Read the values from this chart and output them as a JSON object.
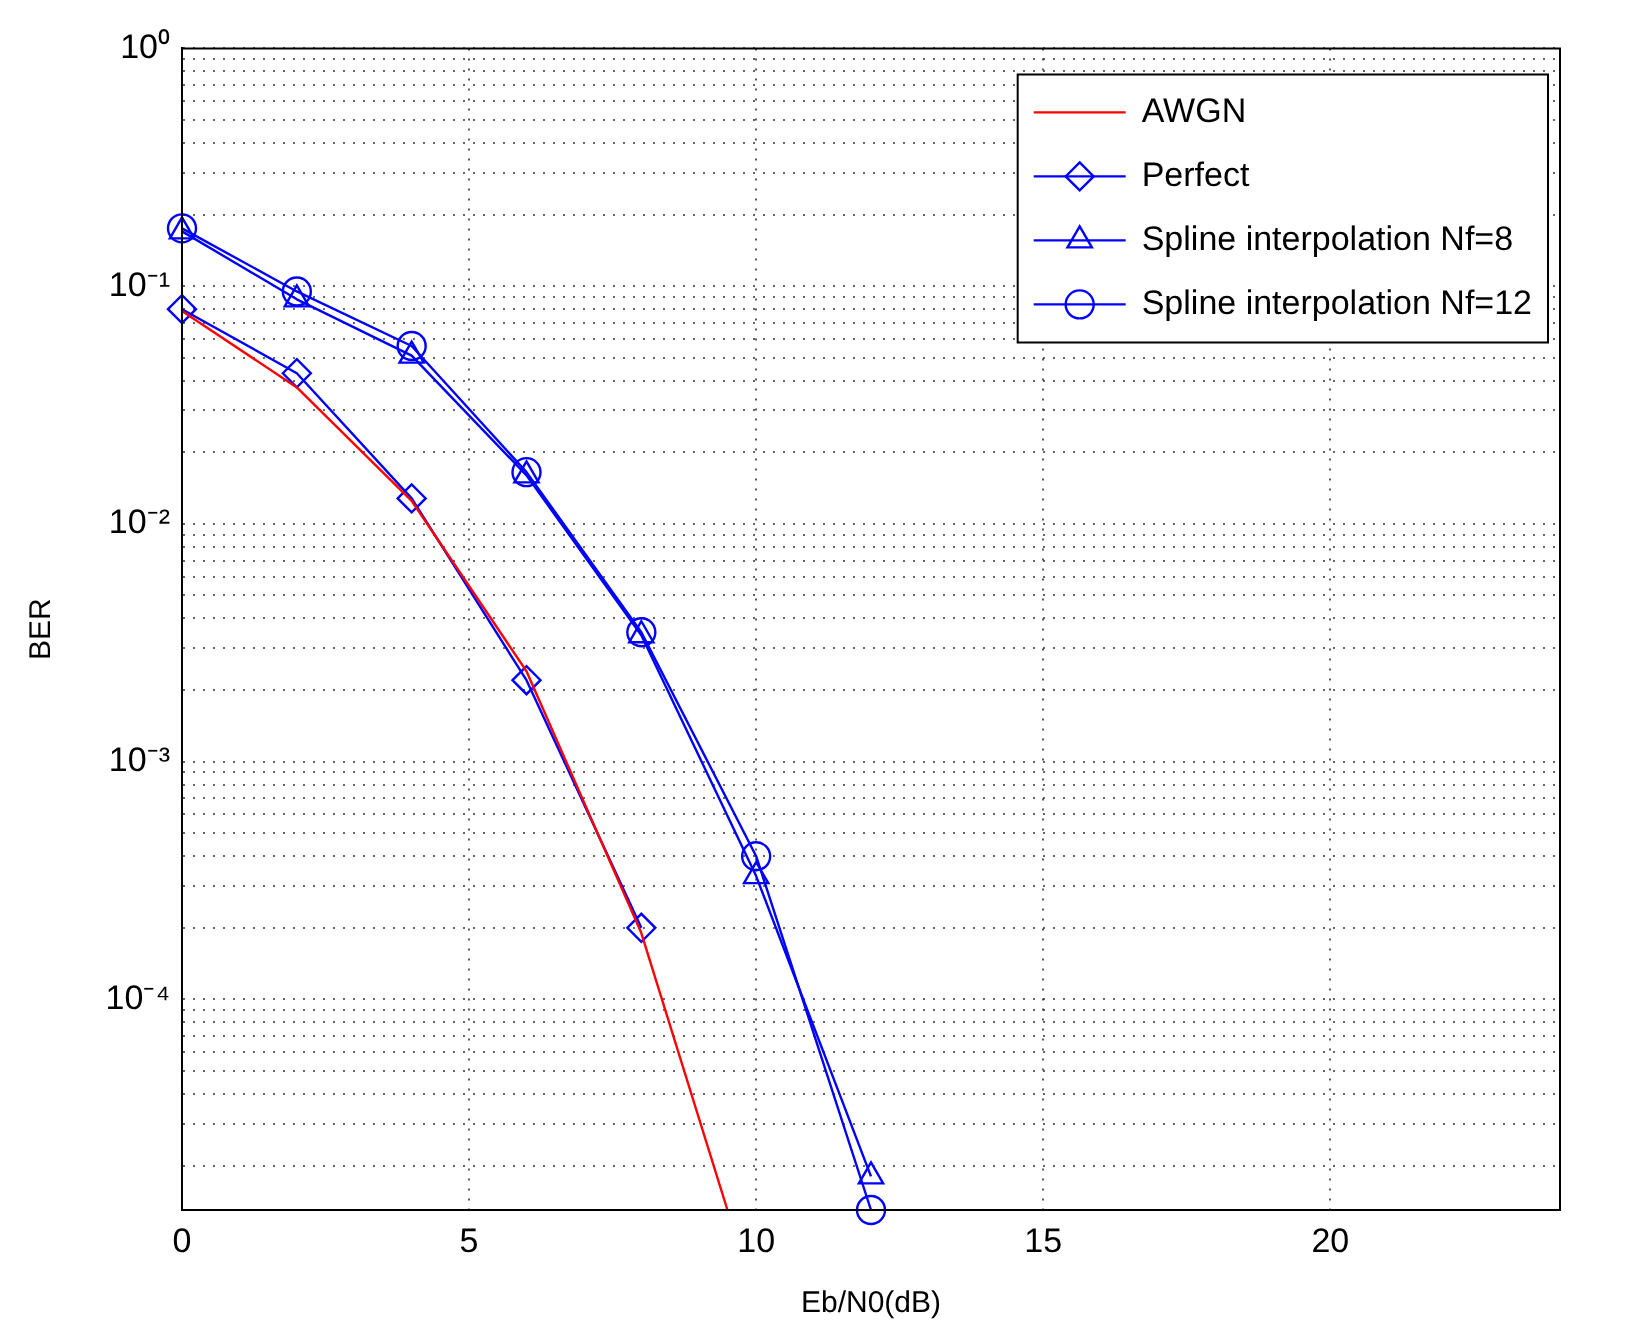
{
  "chart_data": {
    "type": "line",
    "xlabel": "Eb/N0(dB)",
    "ylabel": "BER",
    "log": "y",
    "grid": true,
    "legend": "top right",
    "xlim": [
      0,
      24
    ],
    "xticks": [
      0,
      5,
      10,
      15,
      20
    ],
    "ylim": [
      1.3e-05,
      1
    ],
    "yticks": [
      {
        "value": 2e-05,
        "label": null
      },
      {
        "value": 3e-05,
        "label": null
      },
      {
        "value": 4e-05,
        "label": null
      },
      {
        "value": 5e-05,
        "label": null
      },
      {
        "value": 6e-05,
        "label": null
      },
      {
        "value": 7e-05,
        "label": null
      },
      {
        "value": 8e-05,
        "label": null
      },
      {
        "value": 9e-05,
        "label": null
      },
      {
        "value": 0.0001,
        "label": "10⁻⁴"
      },
      {
        "value": 0.0002,
        "label": null
      },
      {
        "value": 0.0003,
        "label": null
      },
      {
        "value": 0.0004,
        "label": null
      },
      {
        "value": 0.0005,
        "label": null
      },
      {
        "value": 0.0006,
        "label": null
      },
      {
        "value": 0.0007,
        "label": null
      },
      {
        "value": 0.0008,
        "label": null
      },
      {
        "value": 0.0009,
        "label": null
      },
      {
        "value": 0.001,
        "label": "10⁻³"
      },
      {
        "value": 0.002,
        "label": null
      },
      {
        "value": 0.003,
        "label": null
      },
      {
        "value": 0.004,
        "label": null
      },
      {
        "value": 0.005,
        "label": null
      },
      {
        "value": 0.006,
        "label": null
      },
      {
        "value": 0.007,
        "label": null
      },
      {
        "value": 0.008,
        "label": null
      },
      {
        "value": 0.009,
        "label": null
      },
      {
        "value": 0.01,
        "label": "10⁻²"
      },
      {
        "value": 0.02,
        "label": null
      },
      {
        "value": 0.03,
        "label": null
      },
      {
        "value": 0.04,
        "label": null
      },
      {
        "value": 0.05,
        "label": null
      },
      {
        "value": 0.06,
        "label": null
      },
      {
        "value": 0.07,
        "label": null
      },
      {
        "value": 0.08,
        "label": null
      },
      {
        "value": 0.09,
        "label": null
      },
      {
        "value": 0.1,
        "label": "10⁻¹"
      },
      {
        "value": 0.2,
        "label": null
      },
      {
        "value": 0.3,
        "label": null
      },
      {
        "value": 0.4,
        "label": null
      },
      {
        "value": 0.5,
        "label": null
      },
      {
        "value": 0.6,
        "label": null
      },
      {
        "value": 0.7,
        "label": null
      },
      {
        "value": 0.8,
        "label": null
      },
      {
        "value": 0.9,
        "label": null
      },
      {
        "value": 1,
        "label": "10⁰"
      }
    ],
    "series": [
      {
        "name": "AWGN",
        "color": "#ff0000",
        "marker": "none",
        "x": [
          0,
          2,
          4,
          6,
          8,
          9.5
        ],
        "values": [
          0.0786,
          0.0375,
          0.0125,
          0.0024,
          0.00019,
          1.3e-05
        ]
      },
      {
        "name": "Perfect",
        "color": "#0000ff",
        "marker": "diamond",
        "x": [
          0,
          2,
          4,
          6,
          8
        ],
        "values": [
          0.08,
          0.043,
          0.0128,
          0.0022,
          0.0002
        ]
      },
      {
        "name": "Spline interpolation Nf=8",
        "color": "#0000ff",
        "marker": "triangle",
        "x": [
          0,
          2,
          4,
          6,
          8,
          10,
          12
        ],
        "values": [
          0.17,
          0.088,
          0.051,
          0.016,
          0.0034,
          0.00033,
          1.8e-05
        ]
      },
      {
        "name": "Spline interpolation Nf=12",
        "color": "#0000ff",
        "marker": "circle",
        "x": [
          0,
          2,
          4,
          6,
          8,
          10,
          12
        ],
        "values": [
          0.175,
          0.095,
          0.056,
          0.0165,
          0.0035,
          0.0004,
          1.3e-05
        ]
      }
    ]
  }
}
